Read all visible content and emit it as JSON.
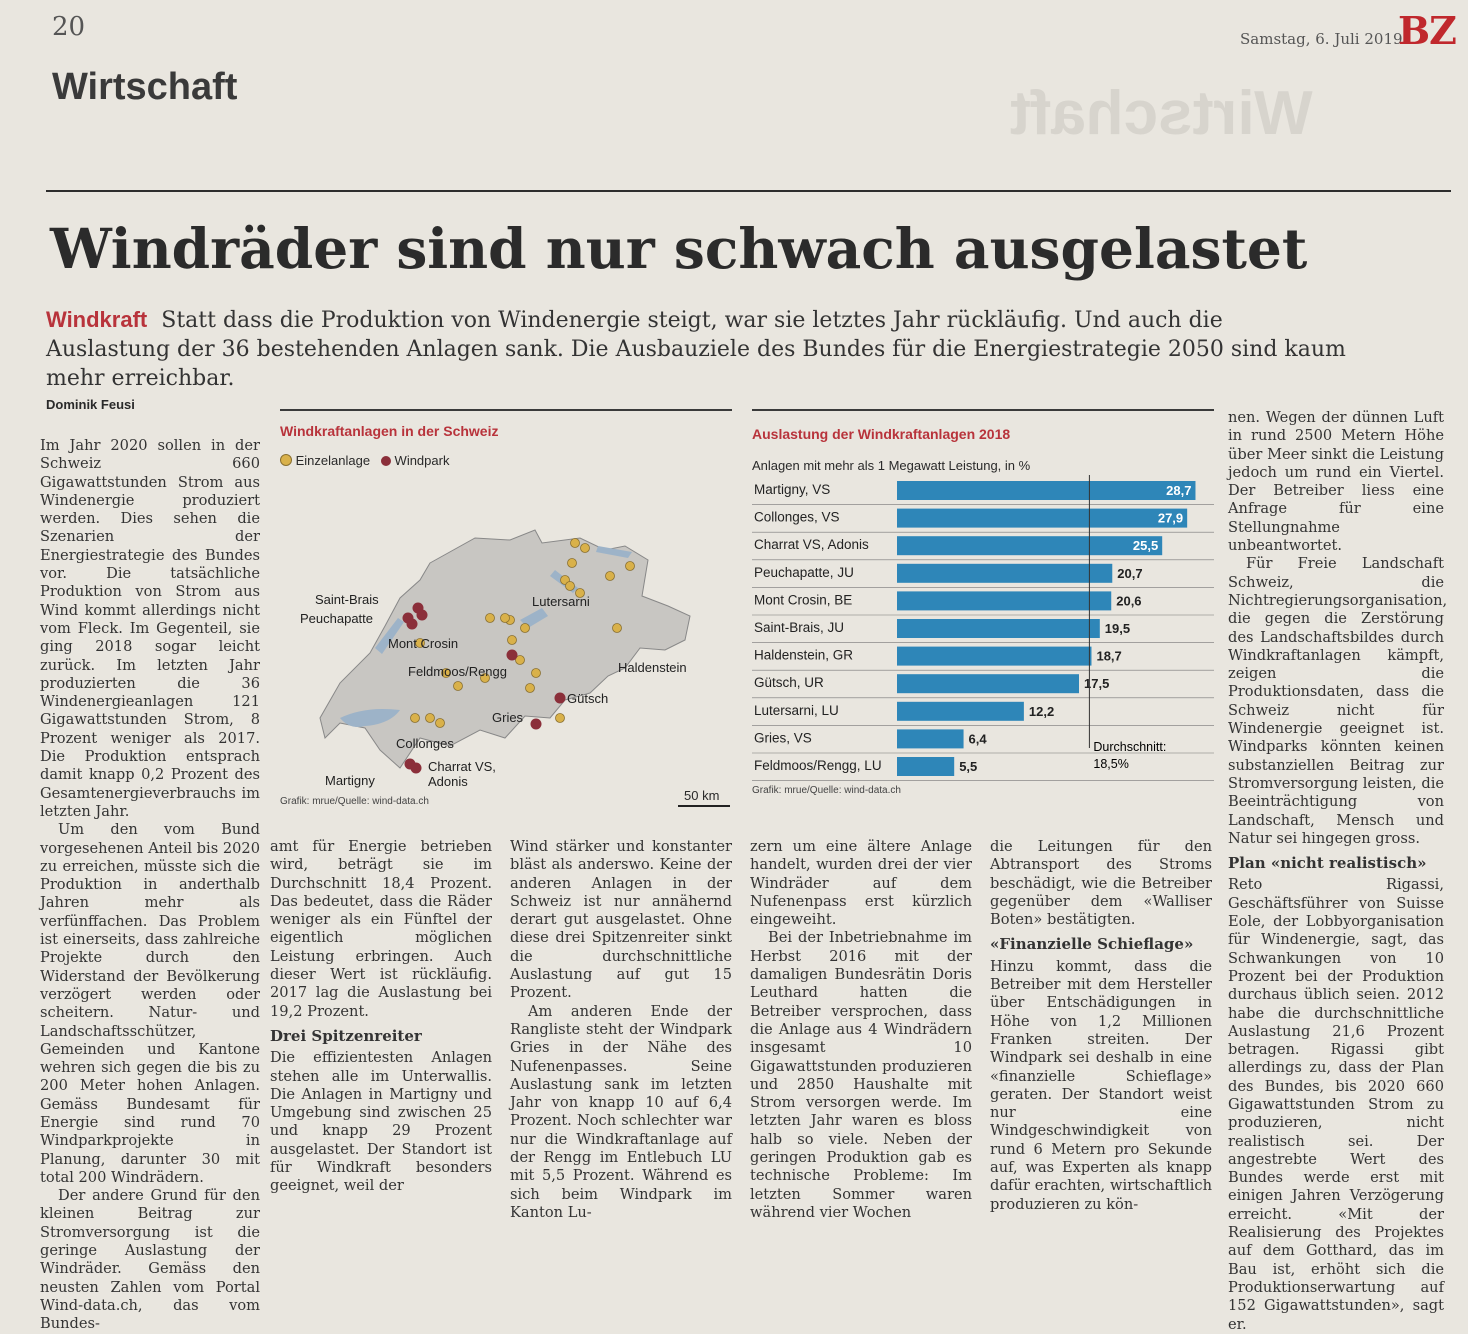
{
  "header": {
    "page_number": "20",
    "date": "Samstag, 6. Juli 2019",
    "logo": "BZ",
    "section": "Wirtschaft",
    "mirror_text": "Wirtschaft"
  },
  "article": {
    "headline": "Windräder sind nur schwach ausgelastet",
    "kicker": "Windkraft",
    "lead": "Statt dass die Produktion von Windenergie steigt, war sie letztes Jahr rückläufig. Und auch die Auslastung der 36 bestehenden Anlagen sank. Die Ausbauziele des Bundes für die Energiestrategie 2050 sind kaum mehr erreichbar.",
    "author": "Dominik Feusi",
    "col1": [
      "Im Jahr 2020 sollen in der Schweiz 660 Gigawattstunden Strom aus Windenergie produziert werden. Dies sehen die Szenarien der Energiestrategie des Bundes vor. Die tatsächliche Produktion von Strom aus Wind kommt allerdings nicht vom Fleck. Im Gegenteil, sie ging 2018 sogar leicht zurück. Im letzten Jahr produzierten die 36 Windenergieanlagen 121 Gigawattstunden Strom, 8 Prozent weniger als 2017. Die Produktion entsprach damit knapp 0,2 Prozent des Gesamtenergieverbrauchs im letzten Jahr.",
      "Um den vom Bund vorgesehenen Anteil bis 2020 zu erreichen, müsste sich die Produktion in anderthalb Jahren mehr als verfünffachen. Das Problem ist einerseits, dass zahlreiche Projekte durch den Widerstand der Bevölkerung verzögert werden oder scheitern. Natur- und Landschaftsschützer, Gemeinden und Kantone wehren sich gegen die bis zu 200 Meter hohen Anlagen. Gemäss Bundesamt für Energie sind rund 70 Windparkprojekte in Planung, darunter 30 mit total 200 Windrädern.",
      "Der andere Grund für den kleinen Beitrag zur Stromversorgung ist die geringe Auslastung der Windräder. Gemäss den neusten Zahlen vom Portal Wind-data.ch, das vom Bundes-"
    ],
    "col2": [
      "amt für Energie betrieben wird, beträgt sie im Durchschnitt 18,4 Prozent. Das bedeutet, dass die Räder weniger als ein Fünftel der eigentlich möglichen Leistung erbringen. Auch dieser Wert ist rückläufig. 2017 lag die Auslastung bei 19,2 Prozent."
    ],
    "col2_heading": "Drei Spitzenreiter",
    "col2b": [
      "Die effizientesten Anlagen stehen alle im Unterwallis. Die Anlagen in Martigny und Umgebung sind zwischen 25 und knapp 29 Prozent ausgelastet. Der Standort ist für Windkraft besonders geeignet, weil der"
    ],
    "col3": [
      "Wind stärker und konstanter bläst als anderswo. Keine der anderen Anlagen in der Schweiz ist nur annähernd derart gut ausgelastet. Ohne diese drei Spitzenreiter sinkt die durchschnittliche Auslastung auf gut 15 Prozent.",
      "Am anderen Ende der Rangliste steht der Windpark Gries in der Nähe des Nufenenpasses. Seine Auslastung sank im letzten Jahr von knapp 10 auf 6,4 Prozent. Noch schlechter war nur die Windkraftanlage auf der Rengg im Entlebuch LU mit 5,5 Prozent. Während es sich beim Windpark im Kanton Lu-"
    ],
    "col4": [
      "zern um eine ältere Anlage handelt, wurden drei der vier Windräder auf dem Nufenenpass erst kürzlich eingeweiht.",
      "Bei der Inbetriebnahme im Herbst 2016 mit der damaligen Bundesrätin Doris Leuthard hatten die Betreiber versprochen, dass die Anlage aus 4 Windrädern insgesamt 10 Gigawattstunden produzieren und 2850 Haushalte mit Strom versorgen werde. Im letzten Jahr waren es bloss halb so viele. Neben der geringen Produktion gab es technische Probleme: Im letzten Sommer waren während vier Wochen"
    ],
    "col5": [
      "die Leitungen für den Abtransport des Stroms beschädigt, wie die Betreiber gegenüber dem «Walliser Boten» bestätigten."
    ],
    "col5_heading": "«Finanzielle Schieflage»",
    "col5b": [
      "Hinzu kommt, dass die Betreiber mit dem Hersteller über Entschädigungen in Höhe von 1,2 Millionen Franken streiten. Der Windpark sei deshalb in eine «finanzielle Schieflage» geraten. Der Standort weist nur eine Windgeschwindigkeit von rund 6 Metern pro Sekunde auf, was Experten als knapp dafür erachten, wirtschaftlich produzieren zu kön-"
    ],
    "col6": [
      "nen. Wegen der dünnen Luft in rund 2500 Metern Höhe über Meer sinkt die Leistung jedoch um rund ein Viertel. Der Betreiber liess eine Anfrage für eine Stellungnahme unbeantwortet.",
      "Für Freie Landschaft Schweiz, die Nichtregierungsorganisation, die gegen die Zerstörung des Landschaftsbildes durch Windkraftanlagen kämpft, zeigen die Produktionsdaten, dass die Schweiz nicht für Windenergie geeignet ist. Windparks könnten keinen substanziellen Beitrag zur Stromversorgung leisten, die Beeinträchtigung von Landschaft, Mensch und Natur sei hingegen gross."
    ],
    "col6_heading": "Plan «nicht realistisch»",
    "col6b": [
      "Reto Rigassi, Geschäftsführer von Suisse Eole, der Lobbyorganisation für Windenergie, sagt, das Schwankungen von 10 Prozent bei der Produktion durchaus üblich seien. 2012 habe die durchschnittliche Auslastung 21,6 Prozent betragen. Rigassi gibt allerdings zu, dass der Plan des Bundes, bis 2020 660 Gigawattstunden Strom zu produzieren, nicht realistisch sei. Der angestrebte Wert des Bundes werde erst mit einigen Jahren Verzögerung erreicht. «Mit der Realisierung des Projektes auf dem Gotthard, das im Bau ist, erhöht sich die Produktionserwartung auf 152 Gigawattstunden», sagt er."
    ]
  },
  "map": {
    "title": "Windkraftanlagen in der Schweiz",
    "legend_single": "Einzelanlage",
    "legend_park": "Windpark",
    "labels": {
      "saint_brais": "Saint-Brais",
      "peuchapatte": "Peuchapatte",
      "mont_crosin": "Mont Crosin",
      "lutersarni": "Lutersarni",
      "feldmoos": "Feldmoos/Rengg",
      "haldenstein": "Haldenstein",
      "guetsch": "Gütsch",
      "gries": "Gries",
      "collonges": "Collonges",
      "charrat": "Charrat VS,",
      "adonis": "Adonis",
      "martigny": "Martigny"
    },
    "source": "Grafik: mrue/Quelle: wind-data.ch",
    "scale": "50 km",
    "colors": {
      "single": "#d9b14a",
      "park": "#8b2f3a",
      "land": "#c8c6c2",
      "water": "#9db3c8"
    }
  },
  "chart_data": {
    "type": "bar",
    "title": "Auslastung der Windkraftanlagen 2018",
    "subtitle": "Anlagen mit mehr als 1 Megawatt Leistung, in %",
    "categories": [
      "Martigny, VS",
      "Collonges, VS",
      "Charrat VS, Adonis",
      "Peuchapatte, JU",
      "Mont Crosin, BE",
      "Saint-Brais, JU",
      "Haldenstein, GR",
      "Gütsch, UR",
      "Lutersarni, LU",
      "Gries, VS",
      "Feldmoos/Rengg, LU"
    ],
    "values": [
      28.7,
      27.9,
      25.5,
      20.7,
      20.6,
      19.5,
      18.7,
      17.5,
      12.2,
      6.4,
      5.5
    ],
    "value_labels": [
      "28,7",
      "27,9",
      "25,5",
      "20,7",
      "20,6",
      "19,5",
      "18,7",
      "17,5",
      "12,2",
      "6,4",
      "5,5"
    ],
    "average": 18.5,
    "average_label": "Durchschnitt:",
    "average_value": "18,5%",
    "source": "Grafik: mrue/Quelle: wind-data.ch",
    "bar_color": "#2e86b8",
    "xlim": [
      0,
      30
    ]
  }
}
